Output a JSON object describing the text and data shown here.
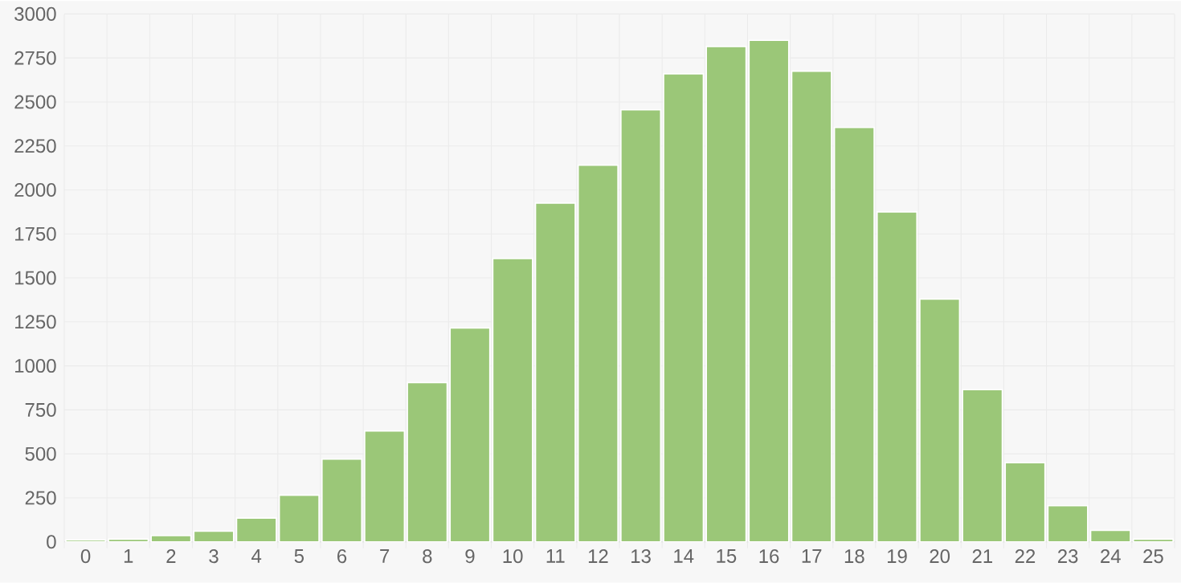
{
  "chart_data": {
    "type": "bar",
    "categories": [
      "0",
      "1",
      "2",
      "3",
      "4",
      "5",
      "6",
      "7",
      "8",
      "9",
      "10",
      "11",
      "12",
      "13",
      "14",
      "15",
      "16",
      "17",
      "18",
      "19",
      "20",
      "21",
      "22",
      "23",
      "24",
      "25"
    ],
    "values": [
      10,
      15,
      35,
      60,
      135,
      265,
      470,
      630,
      905,
      1215,
      1610,
      1925,
      2140,
      2455,
      2660,
      2815,
      2850,
      2675,
      2355,
      1875,
      1380,
      865,
      450,
      205,
      65,
      15
    ],
    "color": "#9bc778",
    "ylim": [
      0,
      3000
    ],
    "yticks": [
      0,
      250,
      500,
      750,
      1000,
      1250,
      1500,
      1750,
      2000,
      2250,
      2500,
      2750,
      3000
    ],
    "grid": true
  }
}
